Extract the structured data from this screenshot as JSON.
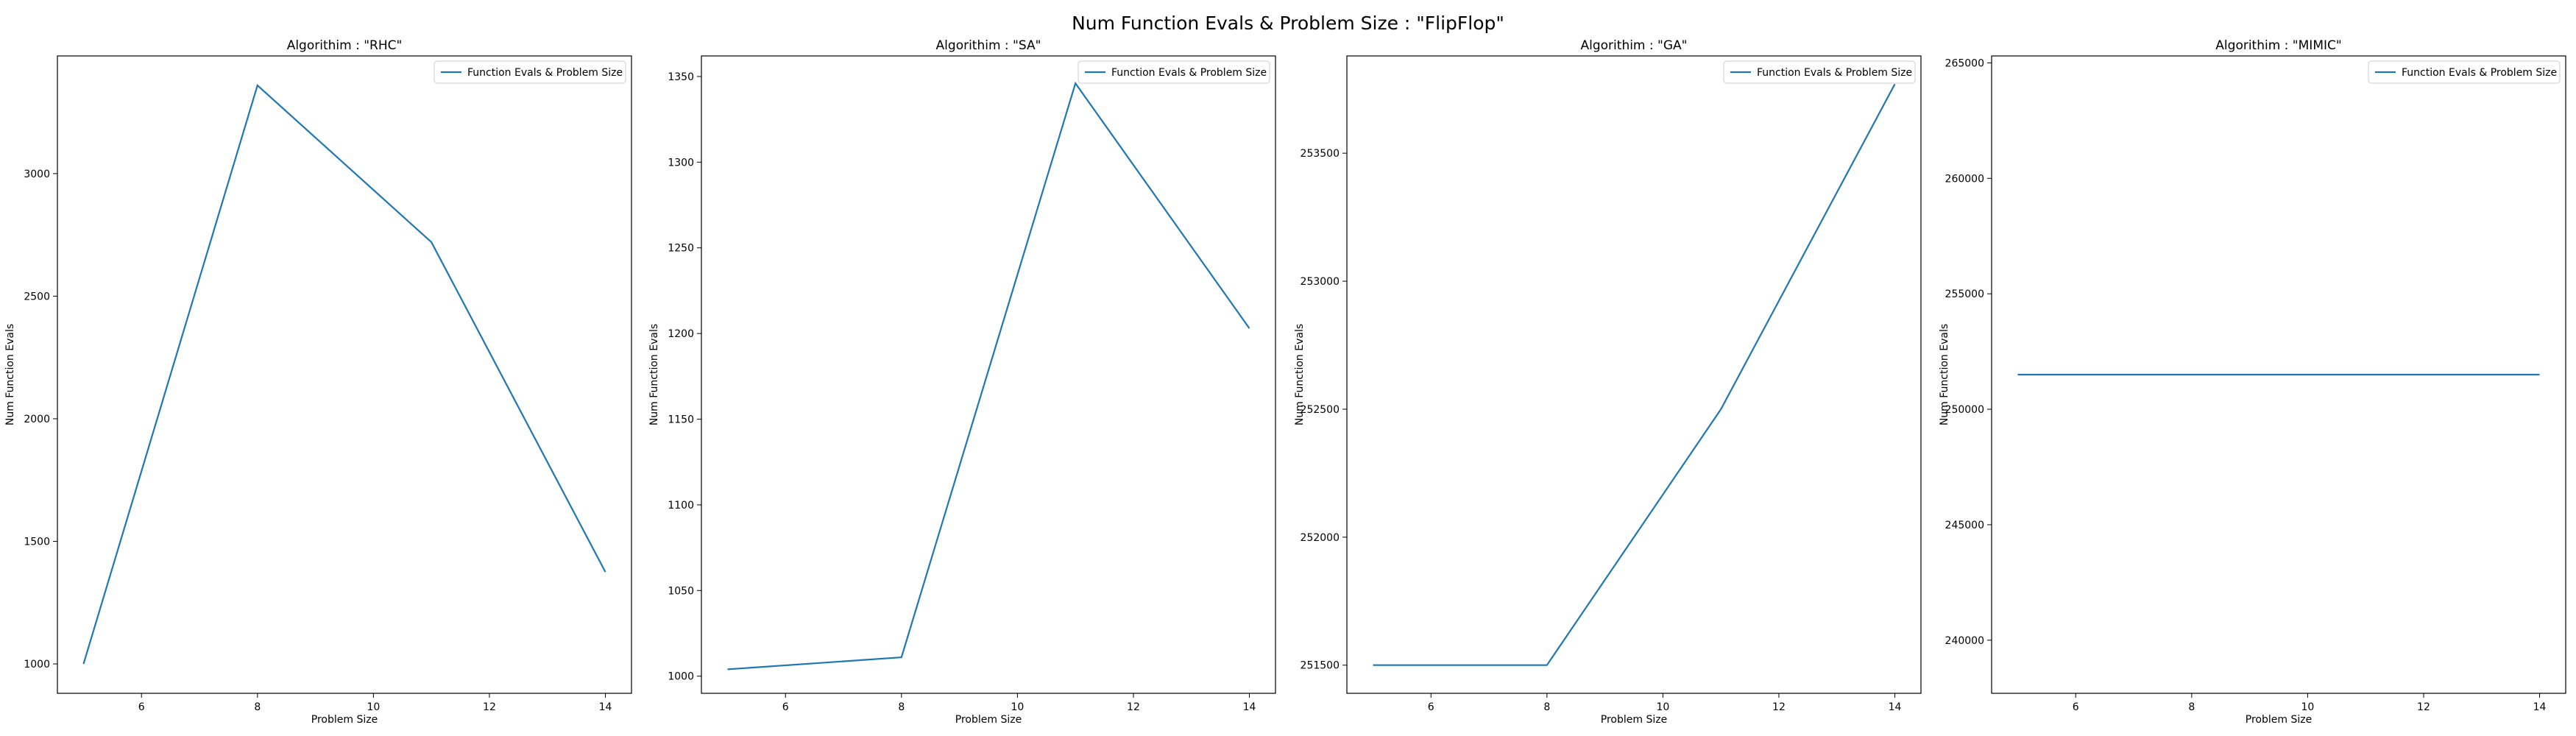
{
  "suptitle": "Num Function Evals & Problem Size : \"FlipFlop\"",
  "colors": {
    "line": "#1f77b4",
    "axes": "#000000",
    "legend_border": "#cccccc"
  },
  "chart_data": [
    {
      "type": "line",
      "title": "Algorithim : \"RHC\"",
      "xlabel": "Problem Size",
      "ylabel": "Num Function Evals",
      "legend": "top-right",
      "grid": false,
      "xlim": [
        4.55,
        14.45
      ],
      "ylim": [
        880,
        3480
      ],
      "xticks": [
        6,
        8,
        10,
        12,
        14
      ],
      "yticks": [
        1000,
        1500,
        2000,
        2500,
        3000
      ],
      "series": [
        {
          "name": "Function Evals & Problem Size",
          "x": [
            5,
            8,
            11,
            14
          ],
          "y": [
            1000,
            3360,
            2720,
            1375
          ]
        }
      ]
    },
    {
      "type": "line",
      "title": "Algorithim : \"SA\"",
      "xlabel": "Problem Size",
      "ylabel": "Num Function Evals",
      "legend": "top-right",
      "grid": false,
      "xlim": [
        4.55,
        14.45
      ],
      "ylim": [
        990,
        1362
      ],
      "xticks": [
        6,
        8,
        10,
        12,
        14
      ],
      "yticks": [
        1000,
        1050,
        1100,
        1150,
        1200,
        1250,
        1300,
        1350
      ],
      "series": [
        {
          "name": "Function Evals & Problem Size",
          "x": [
            5,
            8,
            11,
            14
          ],
          "y": [
            1004,
            1011,
            1346,
            1203
          ]
        }
      ]
    },
    {
      "type": "line",
      "title": "Algorithim : \"GA\"",
      "xlabel": "Problem Size",
      "ylabel": "Num Function Evals",
      "legend": "top-right",
      "grid": false,
      "xlim": [
        4.55,
        14.45
      ],
      "ylim": [
        251390,
        253880
      ],
      "xticks": [
        6,
        8,
        10,
        12,
        14
      ],
      "yticks": [
        251500,
        252000,
        252500,
        253000,
        253500
      ],
      "series": [
        {
          "name": "Function Evals & Problem Size",
          "x": [
            5,
            8,
            11,
            14
          ],
          "y": [
            251500,
            251500,
            252500,
            253770
          ]
        }
      ]
    },
    {
      "type": "line",
      "title": "Algorithim : \"MIMIC\"",
      "xlabel": "Problem Size",
      "ylabel": "Num Function Evals",
      "legend": "top-right",
      "grid": false,
      "xlim": [
        4.55,
        14.45
      ],
      "ylim": [
        237700,
        265300
      ],
      "xticks": [
        6,
        8,
        10,
        12,
        14
      ],
      "yticks": [
        240000,
        245000,
        250000,
        255000,
        260000,
        265000
      ],
      "series": [
        {
          "name": "Function Evals & Problem Size",
          "x": [
            5,
            8,
            11,
            14
          ],
          "y": [
            251500,
            251500,
            251500,
            251500
          ]
        }
      ]
    }
  ]
}
